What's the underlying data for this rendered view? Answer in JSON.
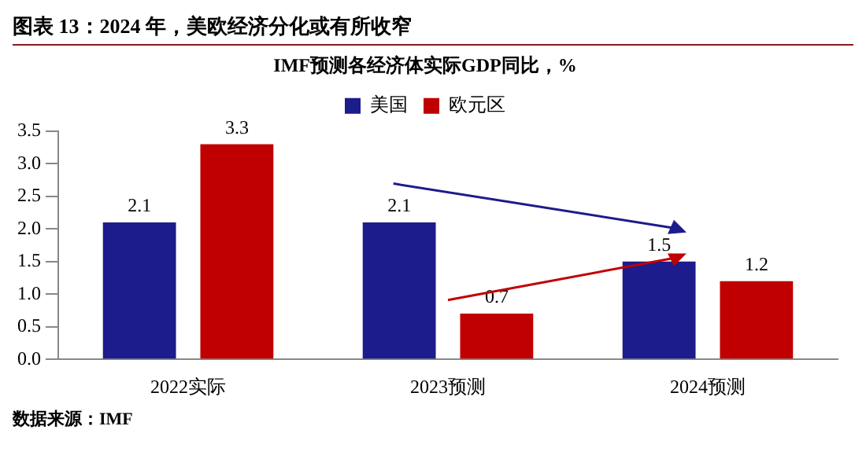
{
  "chart_data": {
    "type": "bar",
    "title": "IMF预测各经济体实际GDP同比，%",
    "subtitle": "图表 13：2024 年，美欧经济分化或有所收窄",
    "categories": [
      "2022实际",
      "2023预测",
      "2024预测"
    ],
    "series": [
      {
        "name": "美国",
        "color": "#1c1c8c",
        "values": [
          2.1,
          2.1,
          1.5
        ]
      },
      {
        "name": "欧元区",
        "color": "#c00000",
        "values": [
          3.3,
          0.7,
          1.2
        ]
      }
    ],
    "ylim": [
      0,
      3.5
    ],
    "yticks": [
      {
        "value": 0,
        "label": "0.0"
      },
      {
        "value": 0.5,
        "label": "0.5"
      },
      {
        "value": 1,
        "label": "1.0"
      },
      {
        "value": 1.5,
        "label": "1.5"
      },
      {
        "value": 2,
        "label": "2.0"
      },
      {
        "value": 2.5,
        "label": "2.5"
      },
      {
        "value": 3,
        "label": "3.0"
      },
      {
        "value": 3.5,
        "label": "3.5"
      }
    ],
    "grid": false,
    "legend": "top",
    "data_labels": true,
    "annotations": [
      "数据来源：IMF"
    ]
  }
}
